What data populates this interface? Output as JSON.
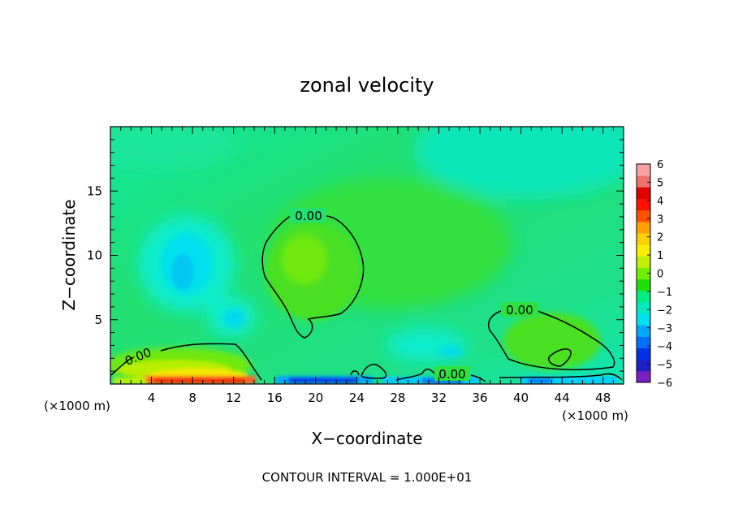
{
  "chart_data": {
    "type": "heatmap",
    "title": "zonal velocity",
    "xlabel": "X−coordinate",
    "ylabel": "Z−coordinate",
    "x_unit_left": "(×1000 m)",
    "x_unit_right": "(×1000 m)",
    "xlim": [
      0,
      50
    ],
    "ylim": [
      0,
      20
    ],
    "x_ticks": [
      4,
      8,
      12,
      16,
      20,
      24,
      28,
      32,
      36,
      40,
      44,
      48
    ],
    "x_tick_labels": [
      "4",
      "8",
      "12",
      "16",
      "20",
      "24",
      "28",
      "32",
      "36",
      "40",
      "44",
      "48"
    ],
    "y_ticks": [
      5,
      10,
      15
    ],
    "y_tick_labels": [
      "5",
      "10",
      "15"
    ],
    "footnote": "CONTOUR INTERVAL = 1.000E+01",
    "colorbar": {
      "min": -6,
      "max": 6,
      "tick_labels": [
        "6",
        "5",
        "4",
        "3",
        "2",
        "1",
        "0",
        "−1",
        "−2",
        "−3",
        "−4",
        "−5",
        "−6"
      ],
      "colors": [
        "#7a20c0",
        "#2020c8",
        "#0030e8",
        "#0070ff",
        "#00a8ff",
        "#00e0f0",
        "#00ecc0",
        "#00ee80",
        "#20e000",
        "#70f000",
        "#c0f000",
        "#f8f000",
        "#ffd000",
        "#ffa000",
        "#ff5000",
        "#ff1000",
        "#e00000",
        "#f07070",
        "#f8a0a0"
      ]
    },
    "contour_labels": [
      "0.00",
      "0.00",
      "0.00",
      "0.00"
    ],
    "contour_level": 0.0
  }
}
